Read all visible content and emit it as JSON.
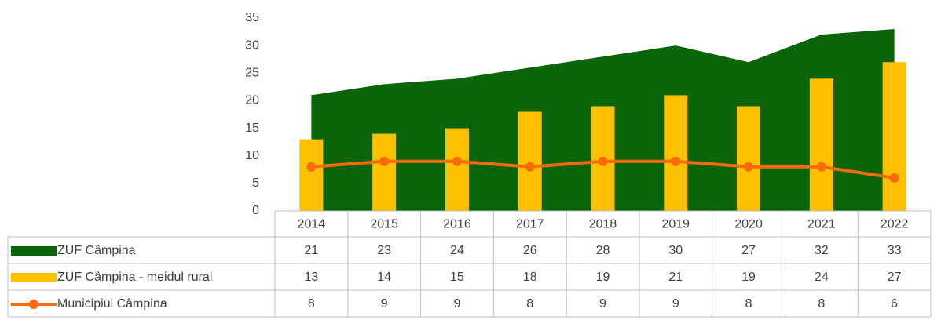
{
  "chart_data": {
    "type": "combo",
    "categories": [
      "2014",
      "2015",
      "2016",
      "2017",
      "2018",
      "2019",
      "2020",
      "2021",
      "2022"
    ],
    "series": [
      {
        "name": "ZUF Câmpina",
        "type": "area",
        "color": "#0a640a",
        "values": [
          21,
          23,
          24,
          26,
          28,
          30,
          27,
          32,
          33
        ]
      },
      {
        "name": "ZUF Câmpina - meidul rural",
        "type": "bar",
        "color": "#ffc000",
        "values": [
          13,
          14,
          15,
          18,
          19,
          21,
          19,
          24,
          27
        ]
      },
      {
        "name": "Municipiul Câmpina",
        "type": "line",
        "color": "#fa6a0c",
        "values": [
          8,
          9,
          9,
          8,
          9,
          9,
          8,
          8,
          6
        ]
      }
    ],
    "ylim": [
      0,
      35
    ],
    "yticks": [
      0,
      5,
      10,
      15,
      20,
      25,
      30,
      35
    ],
    "grid": false,
    "data_table": true
  }
}
